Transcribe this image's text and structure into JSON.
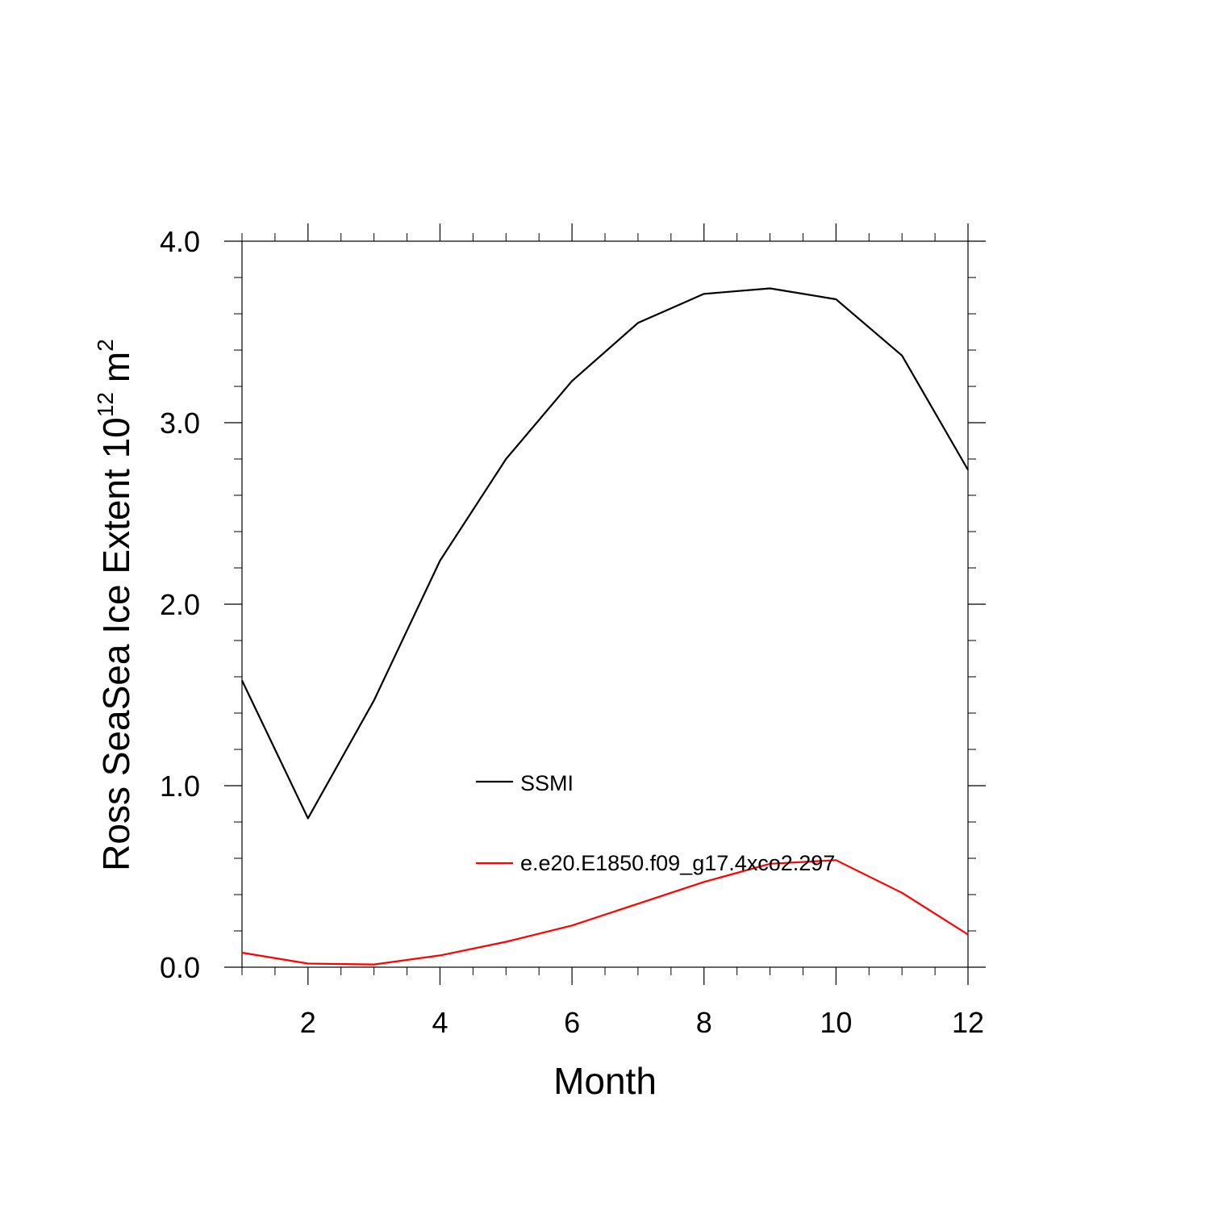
{
  "chart_data": {
    "type": "line",
    "title": "",
    "xlabel": "Month",
    "ylabel": {
      "prefix": "Ross SeaSea Ice Extent 10",
      "exponent": "12",
      "unit_base": "m",
      "unit_exponent": "2"
    },
    "xlim": [
      1,
      12
    ],
    "ylim": [
      0,
      4
    ],
    "x_ticks": [
      2,
      4,
      6,
      8,
      10,
      12
    ],
    "x_tick_labels": [
      "2",
      "4",
      "6",
      "8",
      "10",
      "12"
    ],
    "y_ticks": [
      0,
      1,
      2,
      3,
      4
    ],
    "y_tick_labels": [
      "0.0",
      "1.0",
      "2.0",
      "3.0",
      "4.0"
    ],
    "x_minor_step": 0.5,
    "y_minor_step": 0.2,
    "grid": false,
    "legend_position": "inside, lower-middle",
    "x": [
      1,
      2,
      3,
      4,
      5,
      6,
      7,
      8,
      9,
      10,
      11,
      12
    ],
    "series": [
      {
        "name": "SSMI",
        "color": "#000000",
        "values": [
          1.58,
          0.82,
          1.47,
          2.24,
          2.8,
          3.23,
          3.55,
          3.71,
          3.74,
          3.68,
          3.37,
          2.74
        ]
      },
      {
        "name": "e.e20.E1850.f09_g17.4xco2.297",
        "color": "#ff0000",
        "values": [
          0.08,
          0.02,
          0.015,
          0.065,
          0.14,
          0.23,
          0.35,
          0.47,
          0.57,
          0.59,
          0.41,
          0.18
        ]
      }
    ]
  }
}
